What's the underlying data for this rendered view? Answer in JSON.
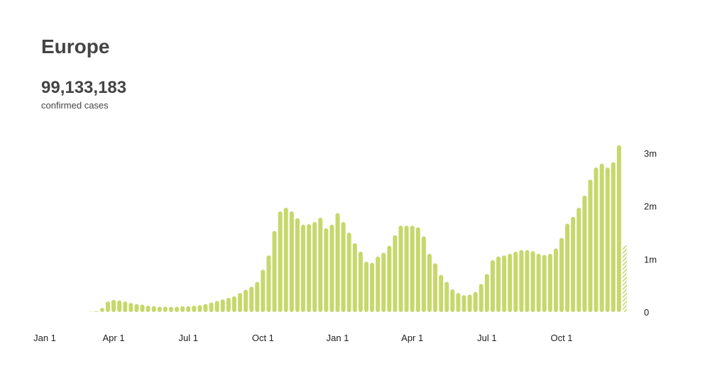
{
  "chart_data": {
    "type": "bar",
    "title": "Europe",
    "total": "99,133,183",
    "subtitle": "confirmed cases",
    "color": "#c6d86b",
    "hatched_last": true,
    "categories": [
      "Jan 1",
      null,
      null,
      null,
      null,
      null,
      null,
      null,
      null,
      null,
      null,
      null,
      "Apr 1",
      null,
      null,
      null,
      null,
      null,
      null,
      null,
      null,
      null,
      null,
      null,
      null,
      "Jul 1",
      null,
      null,
      null,
      null,
      null,
      null,
      null,
      null,
      null,
      null,
      null,
      null,
      "Oct 1",
      null,
      null,
      null,
      null,
      null,
      null,
      null,
      null,
      null,
      null,
      null,
      null,
      "Jan 1",
      null,
      null,
      null,
      null,
      null,
      null,
      null,
      null,
      null,
      null,
      null,
      null,
      "Apr 1",
      null,
      null,
      null,
      null,
      null,
      null,
      null,
      null,
      null,
      null,
      null,
      null,
      "Jul 1",
      null,
      null,
      null,
      null,
      null,
      null,
      null,
      null,
      null,
      null,
      null,
      null,
      "Oct 1",
      null,
      null,
      null,
      null,
      null,
      null,
      null,
      null,
      null,
      null,
      null
    ],
    "values": [
      0,
      0,
      0,
      0,
      0,
      0,
      0,
      0,
      3000,
      10000,
      80000,
      200000,
      230000,
      220000,
      200000,
      170000,
      150000,
      140000,
      120000,
      110000,
      100000,
      100000,
      100000,
      100000,
      110000,
      110000,
      120000,
      130000,
      150000,
      180000,
      210000,
      240000,
      270000,
      300000,
      360000,
      420000,
      480000,
      570000,
      800000,
      1070000,
      1530000,
      1900000,
      1970000,
      1900000,
      1770000,
      1650000,
      1660000,
      1700000,
      1780000,
      1580000,
      1650000,
      1870000,
      1700000,
      1500000,
      1300000,
      1140000,
      950000,
      930000,
      1050000,
      1120000,
      1250000,
      1450000,
      1630000,
      1630000,
      1630000,
      1600000,
      1430000,
      1100000,
      920000,
      700000,
      570000,
      430000,
      360000,
      320000,
      330000,
      380000,
      530000,
      720000,
      980000,
      1050000,
      1070000,
      1100000,
      1140000,
      1170000,
      1170000,
      1150000,
      1100000,
      1080000,
      1100000,
      1200000,
      1400000,
      1670000,
      1800000,
      1970000,
      2200000,
      2500000,
      2730000,
      2800000,
      2730000,
      2830000,
      3150000,
      1270000
    ],
    "ylim": [
      0,
      3200000
    ],
    "yticks": [
      0,
      {
        "value": 1000000,
        "label": "1m"
      },
      {
        "value": 2000000,
        "label": "2m"
      },
      {
        "value": 3000000,
        "label": "3m"
      }
    ]
  }
}
